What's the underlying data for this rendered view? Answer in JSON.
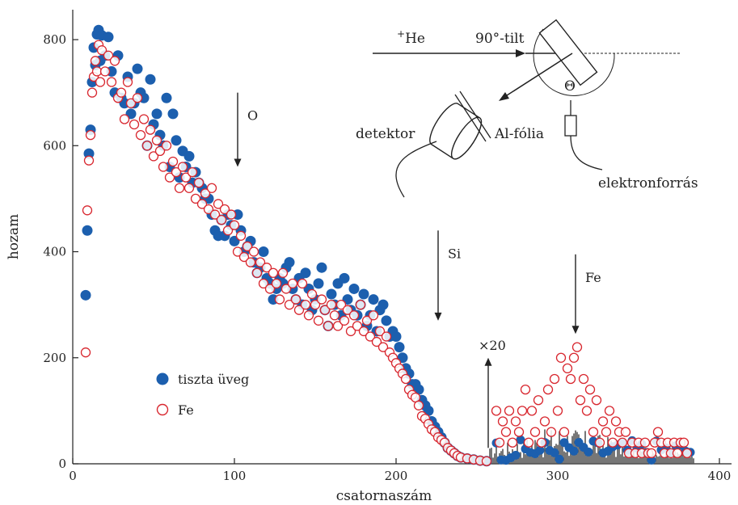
{
  "chart_data": {
    "type": "scatter",
    "xlabel": "csatornaszám",
    "ylabel": "hozam",
    "xlim": [
      0,
      405
    ],
    "ylim": [
      0,
      860
    ],
    "x_ticks": [
      0,
      100,
      200,
      300,
      400
    ],
    "y_ticks": [
      0,
      200,
      400,
      600,
      800
    ],
    "x_tick_labels": [
      "0",
      "100",
      "200",
      "300",
      "400"
    ],
    "y_tick_labels": [
      "0",
      "200",
      "400",
      "600",
      "800"
    ],
    "legend_position": "lower-left",
    "colors": {
      "tiszta_uveg": "#1c5fae",
      "fe": "#d8262e",
      "sticks": "#555555"
    },
    "series": [
      {
        "name": "tiszta üveg",
        "marker": "filled-circle",
        "points": [
          [
            8,
            318
          ],
          [
            9,
            440
          ],
          [
            10,
            585
          ],
          [
            11,
            630
          ],
          [
            12,
            720
          ],
          [
            13,
            785
          ],
          [
            14,
            752
          ],
          [
            15,
            810
          ],
          [
            16,
            818
          ],
          [
            17,
            760
          ],
          [
            18,
            808
          ],
          [
            20,
            770
          ],
          [
            22,
            805
          ],
          [
            24,
            740
          ],
          [
            26,
            700
          ],
          [
            28,
            770
          ],
          [
            30,
            690
          ],
          [
            32,
            680
          ],
          [
            34,
            730
          ],
          [
            36,
            660
          ],
          [
            38,
            680
          ],
          [
            40,
            745
          ],
          [
            42,
            700
          ],
          [
            44,
            690
          ],
          [
            46,
            600
          ],
          [
            48,
            725
          ],
          [
            50,
            640
          ],
          [
            52,
            660
          ],
          [
            54,
            620
          ],
          [
            56,
            600
          ],
          [
            58,
            690
          ],
          [
            60,
            560
          ],
          [
            62,
            660
          ],
          [
            64,
            610
          ],
          [
            66,
            540
          ],
          [
            68,
            590
          ],
          [
            70,
            560
          ],
          [
            72,
            580
          ],
          [
            74,
            530
          ],
          [
            76,
            550
          ],
          [
            78,
            530
          ],
          [
            80,
            520
          ],
          [
            82,
            500
          ],
          [
            84,
            500
          ],
          [
            86,
            470
          ],
          [
            88,
            440
          ],
          [
            90,
            430
          ],
          [
            92,
            460
          ],
          [
            94,
            430
          ],
          [
            96,
            470
          ],
          [
            98,
            450
          ],
          [
            100,
            420
          ],
          [
            102,
            470
          ],
          [
            104,
            440
          ],
          [
            106,
            400
          ],
          [
            108,
            410
          ],
          [
            110,
            420
          ],
          [
            112,
            380
          ],
          [
            114,
            360
          ],
          [
            116,
            370
          ],
          [
            118,
            400
          ],
          [
            120,
            350
          ],
          [
            122,
            340
          ],
          [
            124,
            310
          ],
          [
            126,
            330
          ],
          [
            128,
            350
          ],
          [
            130,
            340
          ],
          [
            132,
            370
          ],
          [
            134,
            380
          ],
          [
            136,
            330
          ],
          [
            138,
            310
          ],
          [
            140,
            350
          ],
          [
            142,
            300
          ],
          [
            144,
            360
          ],
          [
            146,
            330
          ],
          [
            148,
            290
          ],
          [
            150,
            310
          ],
          [
            152,
            340
          ],
          [
            154,
            370
          ],
          [
            156,
            290
          ],
          [
            158,
            260
          ],
          [
            160,
            320
          ],
          [
            162,
            300
          ],
          [
            164,
            340
          ],
          [
            166,
            280
          ],
          [
            168,
            350
          ],
          [
            170,
            310
          ],
          [
            172,
            290
          ],
          [
            174,
            330
          ],
          [
            176,
            280
          ],
          [
            178,
            300
          ],
          [
            180,
            320
          ],
          [
            182,
            260
          ],
          [
            184,
            280
          ],
          [
            186,
            310
          ],
          [
            188,
            250
          ],
          [
            190,
            290
          ],
          [
            192,
            300
          ],
          [
            194,
            270
          ],
          [
            196,
            240
          ],
          [
            198,
            250
          ],
          [
            200,
            240
          ],
          [
            202,
            220
          ],
          [
            204,
            200
          ],
          [
            206,
            180
          ],
          [
            208,
            170
          ],
          [
            210,
            150
          ],
          [
            212,
            150
          ],
          [
            214,
            140
          ],
          [
            216,
            120
          ],
          [
            218,
            110
          ],
          [
            220,
            100
          ],
          [
            222,
            80
          ],
          [
            224,
            70
          ],
          [
            226,
            60
          ],
          [
            228,
            50
          ],
          [
            230,
            40
          ],
          [
            232,
            30
          ],
          [
            234,
            25
          ],
          [
            236,
            20
          ],
          [
            238,
            15
          ],
          [
            240,
            12
          ],
          [
            244,
            10
          ],
          [
            248,
            8
          ],
          [
            252,
            6
          ],
          [
            256,
            5
          ]
        ]
      },
      {
        "name": "Fe",
        "marker": "open-circle",
        "points": [
          [
            8,
            210
          ],
          [
            9,
            478
          ],
          [
            10,
            572
          ],
          [
            11,
            620
          ],
          [
            12,
            700
          ],
          [
            13,
            730
          ],
          [
            14,
            760
          ],
          [
            15,
            740
          ],
          [
            16,
            790
          ],
          [
            17,
            720
          ],
          [
            18,
            780
          ],
          [
            20,
            740
          ],
          [
            22,
            770
          ],
          [
            24,
            720
          ],
          [
            26,
            760
          ],
          [
            28,
            690
          ],
          [
            30,
            700
          ],
          [
            32,
            650
          ],
          [
            34,
            720
          ],
          [
            36,
            680
          ],
          [
            38,
            640
          ],
          [
            40,
            690
          ],
          [
            42,
            620
          ],
          [
            44,
            650
          ],
          [
            46,
            600
          ],
          [
            48,
            630
          ],
          [
            50,
            580
          ],
          [
            52,
            610
          ],
          [
            54,
            590
          ],
          [
            56,
            560
          ],
          [
            58,
            600
          ],
          [
            60,
            540
          ],
          [
            62,
            570
          ],
          [
            64,
            550
          ],
          [
            66,
            520
          ],
          [
            68,
            560
          ],
          [
            70,
            540
          ],
          [
            72,
            520
          ],
          [
            74,
            550
          ],
          [
            76,
            500
          ],
          [
            78,
            530
          ],
          [
            80,
            490
          ],
          [
            82,
            510
          ],
          [
            84,
            480
          ],
          [
            86,
            520
          ],
          [
            88,
            470
          ],
          [
            90,
            490
          ],
          [
            92,
            460
          ],
          [
            94,
            480
          ],
          [
            96,
            440
          ],
          [
            98,
            470
          ],
          [
            100,
            450
          ],
          [
            102,
            400
          ],
          [
            104,
            430
          ],
          [
            106,
            390
          ],
          [
            108,
            410
          ],
          [
            110,
            380
          ],
          [
            112,
            400
          ],
          [
            114,
            360
          ],
          [
            116,
            380
          ],
          [
            118,
            340
          ],
          [
            120,
            370
          ],
          [
            122,
            330
          ],
          [
            124,
            360
          ],
          [
            126,
            340
          ],
          [
            128,
            310
          ],
          [
            130,
            360
          ],
          [
            132,
            330
          ],
          [
            134,
            300
          ],
          [
            136,
            340
          ],
          [
            138,
            310
          ],
          [
            140,
            290
          ],
          [
            142,
            340
          ],
          [
            144,
            300
          ],
          [
            146,
            280
          ],
          [
            148,
            320
          ],
          [
            150,
            300
          ],
          [
            152,
            270
          ],
          [
            154,
            310
          ],
          [
            156,
            290
          ],
          [
            158,
            260
          ],
          [
            160,
            300
          ],
          [
            162,
            280
          ],
          [
            164,
            260
          ],
          [
            166,
            300
          ],
          [
            168,
            270
          ],
          [
            170,
            290
          ],
          [
            172,
            250
          ],
          [
            174,
            280
          ],
          [
            176,
            260
          ],
          [
            178,
            300
          ],
          [
            180,
            250
          ],
          [
            182,
            270
          ],
          [
            184,
            240
          ],
          [
            186,
            280
          ],
          [
            188,
            230
          ],
          [
            190,
            250
          ],
          [
            192,
            220
          ],
          [
            194,
            240
          ],
          [
            196,
            210
          ],
          [
            198,
            200
          ],
          [
            200,
            190
          ],
          [
            202,
            180
          ],
          [
            204,
            170
          ],
          [
            206,
            160
          ],
          [
            208,
            140
          ],
          [
            210,
            130
          ],
          [
            212,
            125
          ],
          [
            214,
            110
          ],
          [
            216,
            90
          ],
          [
            218,
            85
          ],
          [
            220,
            75
          ],
          [
            222,
            65
          ],
          [
            224,
            60
          ],
          [
            226,
            50
          ],
          [
            228,
            45
          ],
          [
            230,
            40
          ],
          [
            232,
            30
          ],
          [
            234,
            25
          ],
          [
            236,
            20
          ],
          [
            238,
            15
          ],
          [
            240,
            12
          ],
          [
            244,
            10
          ],
          [
            248,
            8
          ],
          [
            252,
            6
          ],
          [
            256,
            5
          ],
          [
            262,
            100
          ],
          [
            264,
            40
          ],
          [
            266,
            80
          ],
          [
            268,
            60
          ],
          [
            270,
            100
          ],
          [
            272,
            40
          ],
          [
            274,
            80
          ],
          [
            276,
            60
          ],
          [
            278,
            100
          ],
          [
            280,
            140
          ],
          [
            282,
            40
          ],
          [
            284,
            100
          ],
          [
            286,
            60
          ],
          [
            288,
            120
          ],
          [
            290,
            40
          ],
          [
            292,
            80
          ],
          [
            294,
            140
          ],
          [
            296,
            60
          ],
          [
            298,
            160
          ],
          [
            300,
            100
          ],
          [
            302,
            200
          ],
          [
            304,
            60
          ],
          [
            306,
            180
          ],
          [
            308,
            160
          ],
          [
            310,
            200
          ],
          [
            312,
            220
          ],
          [
            314,
            120
          ],
          [
            316,
            160
          ],
          [
            318,
            100
          ],
          [
            320,
            140
          ],
          [
            322,
            60
          ],
          [
            324,
            120
          ],
          [
            326,
            40
          ],
          [
            328,
            80
          ],
          [
            330,
            60
          ],
          [
            332,
            100
          ],
          [
            334,
            40
          ],
          [
            336,
            80
          ],
          [
            338,
            60
          ],
          [
            340,
            40
          ],
          [
            342,
            60
          ],
          [
            344,
            20
          ],
          [
            346,
            40
          ],
          [
            348,
            20
          ],
          [
            350,
            40
          ],
          [
            352,
            20
          ],
          [
            354,
            40
          ],
          [
            356,
            20
          ],
          [
            358,
            20
          ],
          [
            360,
            40
          ],
          [
            362,
            60
          ],
          [
            364,
            40
          ],
          [
            366,
            20
          ],
          [
            368,
            40
          ],
          [
            370,
            20
          ],
          [
            372,
            40
          ],
          [
            374,
            20
          ],
          [
            376,
            40
          ],
          [
            378,
            40
          ],
          [
            380,
            20
          ]
        ]
      }
    ],
    "legend": [
      {
        "label": "tiszta üveg",
        "marker": "filled-circle"
      },
      {
        "label": "Fe",
        "marker": "open-circle"
      }
    ],
    "annotations": [
      {
        "text": "O",
        "x": 102,
        "arrow_from_y": 700,
        "arrow_to_y": 560
      },
      {
        "text": "Si",
        "x": 226,
        "arrow_from_y": 440,
        "arrow_to_y": 270
      },
      {
        "text": "Fe",
        "x": 311,
        "arrow_from_y": 395,
        "arrow_to_y": 245
      },
      {
        "text": "×20",
        "x": 257,
        "arrow_from_y": 30,
        "arrow_to_y": 200
      }
    ],
    "inset_labels": {
      "beam": "He",
      "beam_superscript": "+",
      "tilt": "90°-tilt",
      "angle": "Θ",
      "detector": "detektor",
      "foil": "Al-fólia",
      "electron_source": "elektronforrás"
    }
  }
}
